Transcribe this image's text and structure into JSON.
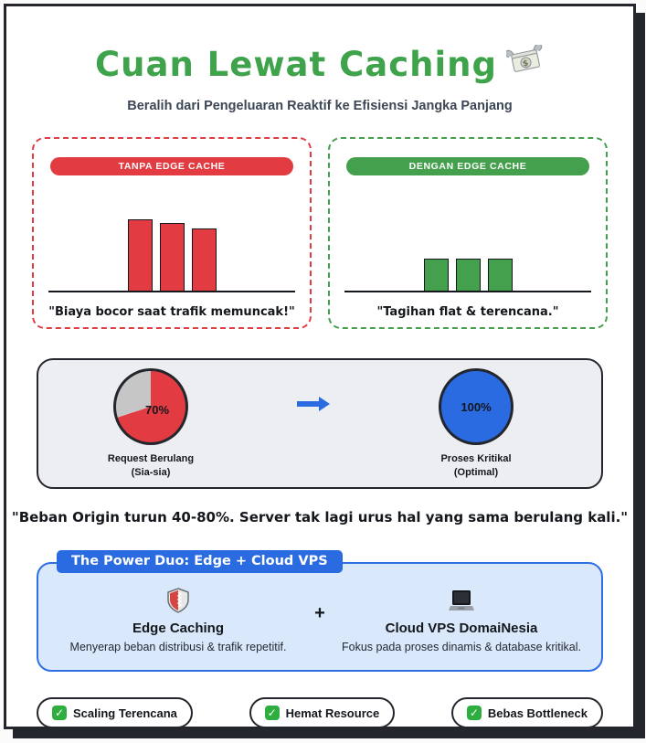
{
  "header": {
    "title": "Cuan Lewat Caching",
    "title_icon": "money-with-wings-icon",
    "subtitle": "Beralih dari Pengeluaran Reaktif ke Efisiensi Jangka Panjang",
    "title_color": "#3ea34b"
  },
  "comparison": {
    "without": {
      "header": "TANPA EDGE CACHE",
      "color": "#e23b41",
      "bars": [
        78,
        74,
        68
      ],
      "caption": "\"Biaya bocor saat trafik memuncak!\""
    },
    "with": {
      "header": "DENGAN EDGE CACHE",
      "color": "#44a04c",
      "bars": [
        35,
        35,
        35
      ],
      "caption": "\"Tagihan flat & terencana.\""
    }
  },
  "impact": {
    "left_pie": {
      "value_label": "70%",
      "percent": 70,
      "filled_color": "#e23b41",
      "rest_color": "#c6c6c6",
      "label_line1": "Request Berulang",
      "label_line2": "(Sia-sia)"
    },
    "arrow_icon": "right-arrow-icon",
    "arrow_color": "#2a6be2",
    "right_pie": {
      "value_label": "100%",
      "percent": 100,
      "filled_color": "#2a6be2",
      "rest_color": "#2a6be2",
      "label_line1": "Proses Kritikal",
      "label_line2": "(Optimal)"
    },
    "quote": "\"Beban Origin turun 40-80%. Server tak lagi urus hal yang sama berulang kali.\""
  },
  "power_duo": {
    "tab": "The Power Duo: Edge + Cloud VPS",
    "left": {
      "icon": "shield-icon",
      "name": "Edge Caching",
      "desc": "Menyerap beban distribusi & trafik repetitif."
    },
    "plus": "+",
    "right": {
      "icon": "laptop-icon",
      "name": "Cloud VPS DomaiNesia",
      "desc": "Fokus pada proses dinamis & database kritikal."
    }
  },
  "badges": [
    {
      "icon": "check-icon",
      "glyph": "✓",
      "label": "Scaling Terencana"
    },
    {
      "icon": "check-icon",
      "glyph": "✓",
      "label": "Hemat Resource"
    },
    {
      "icon": "check-icon",
      "glyph": "✓",
      "label": "Bebas Bottleneck"
    }
  ],
  "colors": {
    "card_border": "#23272d",
    "panel_bg": "#eceef1",
    "duo_bg": "#d9e8fb",
    "duo_border": "#2f6fe4",
    "accent_blue": "#2a6be2",
    "accent_red": "#e23b41",
    "accent_green": "#44a04c"
  }
}
